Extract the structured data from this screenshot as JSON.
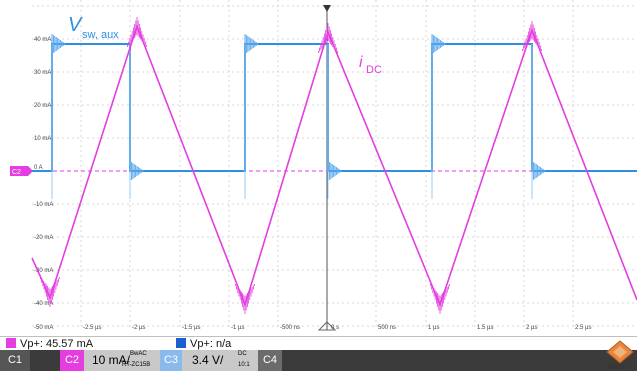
{
  "labels": {
    "v_sw_main": "V",
    "v_sw_sub": "sw, aux",
    "i_dc_main": "i",
    "i_dc_sub": "DC"
  },
  "ch2_marker": "C2",
  "y_ticks": [
    "40 mA",
    "30 mA",
    "20 mA",
    "10 mA",
    "0 A",
    "-10 mA",
    "-20 mA",
    "-30 mA",
    "-40 mA",
    "-50 mA"
  ],
  "x_ticks": [
    "-2.5 µs",
    "-2 µs",
    "-1.5 µs",
    "-1 µs",
    "-500 ns",
    "0 s",
    "500 ns",
    "1 µs",
    "1.5 µs",
    "2 µs",
    "2.5 µs"
  ],
  "measurements": {
    "c2_tag": "C2",
    "c2_text": "Vp+: 45.57 mA",
    "c1_tag": "C1",
    "c1_text": "Vp+: n/a"
  },
  "channels": {
    "c1_label": "C1",
    "c2_label": "C2",
    "c2_scale": "10 mA/",
    "c2_coupling": "BwAC",
    "c2_probe": "RT-ZC15B",
    "c3_label": "C3",
    "c3_scale": "3.4 V/",
    "c3_coupling": "DC",
    "c3_probe": "10:1",
    "c4_label": "C4"
  },
  "menu_label": "Menu",
  "colors": {
    "ch1_blue": "#2f8fe0",
    "ch2_magenta": "#e43ee0",
    "grid": "#d7d7d7",
    "marker": "#3a7bd5"
  }
}
